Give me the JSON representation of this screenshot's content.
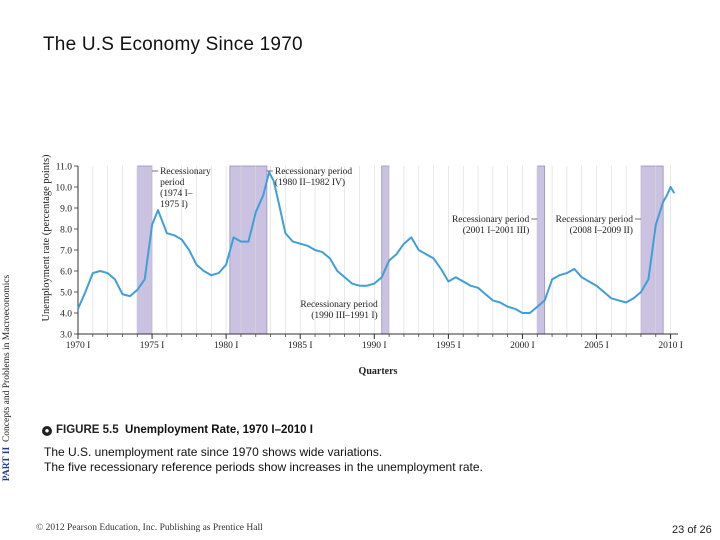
{
  "slide": {
    "title": "The U.S Economy Since 1970",
    "side_part": "PART II",
    "side_text": "Concepts and Problems in Macroeconomics",
    "caption_icon": "figure-bullet-icon",
    "caption_label": "FIGURE 5.5",
    "caption_title": "Unemployment Rate, 1970 I–2010 I",
    "description_line1": "The U.S. unemployment rate since 1970 shows wide variations.",
    "description_line2": "The five recessionary reference periods show increases in the unemployment rate.",
    "footer_left": "© 2012 Pearson Education, Inc. Publishing as Prentice Hall",
    "page_number": "23",
    "page_of": "of 26"
  },
  "chart_data": {
    "type": "line",
    "xlabel": "Quarters",
    "ylabel": "Unemployment rate (percentage points)",
    "ylim": [
      3.0,
      11.0
    ],
    "xlim": [
      1970.0,
      2010.5
    ],
    "y_ticks": [
      "3.0",
      "4.0",
      "5.0",
      "6.0",
      "7.0",
      "8.0",
      "9.0",
      "10.0",
      "11.0"
    ],
    "x_ticks": [
      {
        "value": 1970,
        "label": "1970 I"
      },
      {
        "value": 1975,
        "label": "1975 I"
      },
      {
        "value": 1980,
        "label": "1980 I"
      },
      {
        "value": 1985,
        "label": "1985 I"
      },
      {
        "value": 1990,
        "label": "1990 I"
      },
      {
        "value": 1995,
        "label": "1995 I"
      },
      {
        "value": 2000,
        "label": "2000 I"
      },
      {
        "value": 2005,
        "label": "2005 I"
      },
      {
        "value": 2010,
        "label": "2010 I"
      }
    ],
    "grid": "vertical",
    "line_color": "#3f9fd9",
    "band_color": "#cbc1e0",
    "recessions": [
      {
        "start": 1974.0,
        "end": 1975.0,
        "label_lines": [
          "Recessionary",
          "period",
          "(1974 I–",
          "1975 I)"
        ]
      },
      {
        "start": 1980.25,
        "end": 1982.75,
        "label_lines": [
          "Recessionary period",
          "(1980 II–1982 IV)"
        ]
      },
      {
        "start": 1990.5,
        "end": 1991.0,
        "label_lines": [
          "Recessionary period",
          "(1990 III–1991 I)"
        ]
      },
      {
        "start": 2001.0,
        "end": 2001.5,
        "label_lines": [
          "Recessionary period",
          "(2001 I–2001 III)"
        ]
      },
      {
        "start": 2008.0,
        "end": 2009.5,
        "label_lines": [
          "Recessionary period",
          "(2008 I–2009 II)"
        ]
      }
    ],
    "series": [
      {
        "x": [
          1970.0,
          1970.5,
          1971.0,
          1971.5,
          1972.0,
          1972.5,
          1973.0,
          1973.5,
          1974.0,
          1974.5,
          1975.0,
          1975.4,
          1976.0,
          1976.5,
          1977.0,
          1977.5,
          1978.0,
          1978.5,
          1979.0,
          1979.5,
          1980.0,
          1980.5,
          1981.0,
          1981.5,
          1982.0,
          1982.5,
          1982.9,
          1983.2,
          1983.5,
          1984.0,
          1984.5,
          1985.0,
          1985.5,
          1986.0,
          1986.5,
          1987.0,
          1987.5,
          1988.0,
          1988.5,
          1989.0,
          1989.5,
          1990.0,
          1990.5,
          1991.0,
          1991.5,
          1992.0,
          1992.5,
          1993.0,
          1993.5,
          1994.0,
          1994.5,
          1995.0,
          1995.5,
          1996.0,
          1996.5,
          1997.0,
          1997.5,
          1998.0,
          1998.5,
          1999.0,
          1999.5,
          2000.0,
          2000.5,
          2001.0,
          2001.5,
          2002.0,
          2002.5,
          2003.0,
          2003.5,
          2004.0,
          2004.5,
          2005.0,
          2005.5,
          2006.0,
          2006.5,
          2007.0,
          2007.5,
          2008.0,
          2008.5,
          2009.0,
          2009.5,
          2009.75,
          2010.0,
          2010.25
        ],
        "y": [
          4.2,
          5.0,
          5.9,
          6.0,
          5.9,
          5.6,
          4.9,
          4.8,
          5.1,
          5.6,
          8.2,
          8.9,
          7.8,
          7.7,
          7.5,
          7.0,
          6.3,
          6.0,
          5.8,
          5.9,
          6.3,
          7.6,
          7.4,
          7.4,
          8.8,
          9.6,
          10.7,
          10.3,
          9.4,
          7.8,
          7.4,
          7.3,
          7.2,
          7.0,
          6.9,
          6.6,
          6.0,
          5.7,
          5.4,
          5.3,
          5.3,
          5.4,
          5.7,
          6.5,
          6.8,
          7.3,
          7.6,
          7.0,
          6.8,
          6.6,
          6.1,
          5.5,
          5.7,
          5.5,
          5.3,
          5.2,
          4.9,
          4.6,
          4.5,
          4.3,
          4.2,
          4.0,
          4.0,
          4.3,
          4.6,
          5.6,
          5.8,
          5.9,
          6.1,
          5.7,
          5.5,
          5.3,
          5.0,
          4.7,
          4.6,
          4.5,
          4.7,
          5.0,
          5.6,
          8.2,
          9.3,
          9.6,
          10.0,
          9.7
        ]
      }
    ]
  }
}
